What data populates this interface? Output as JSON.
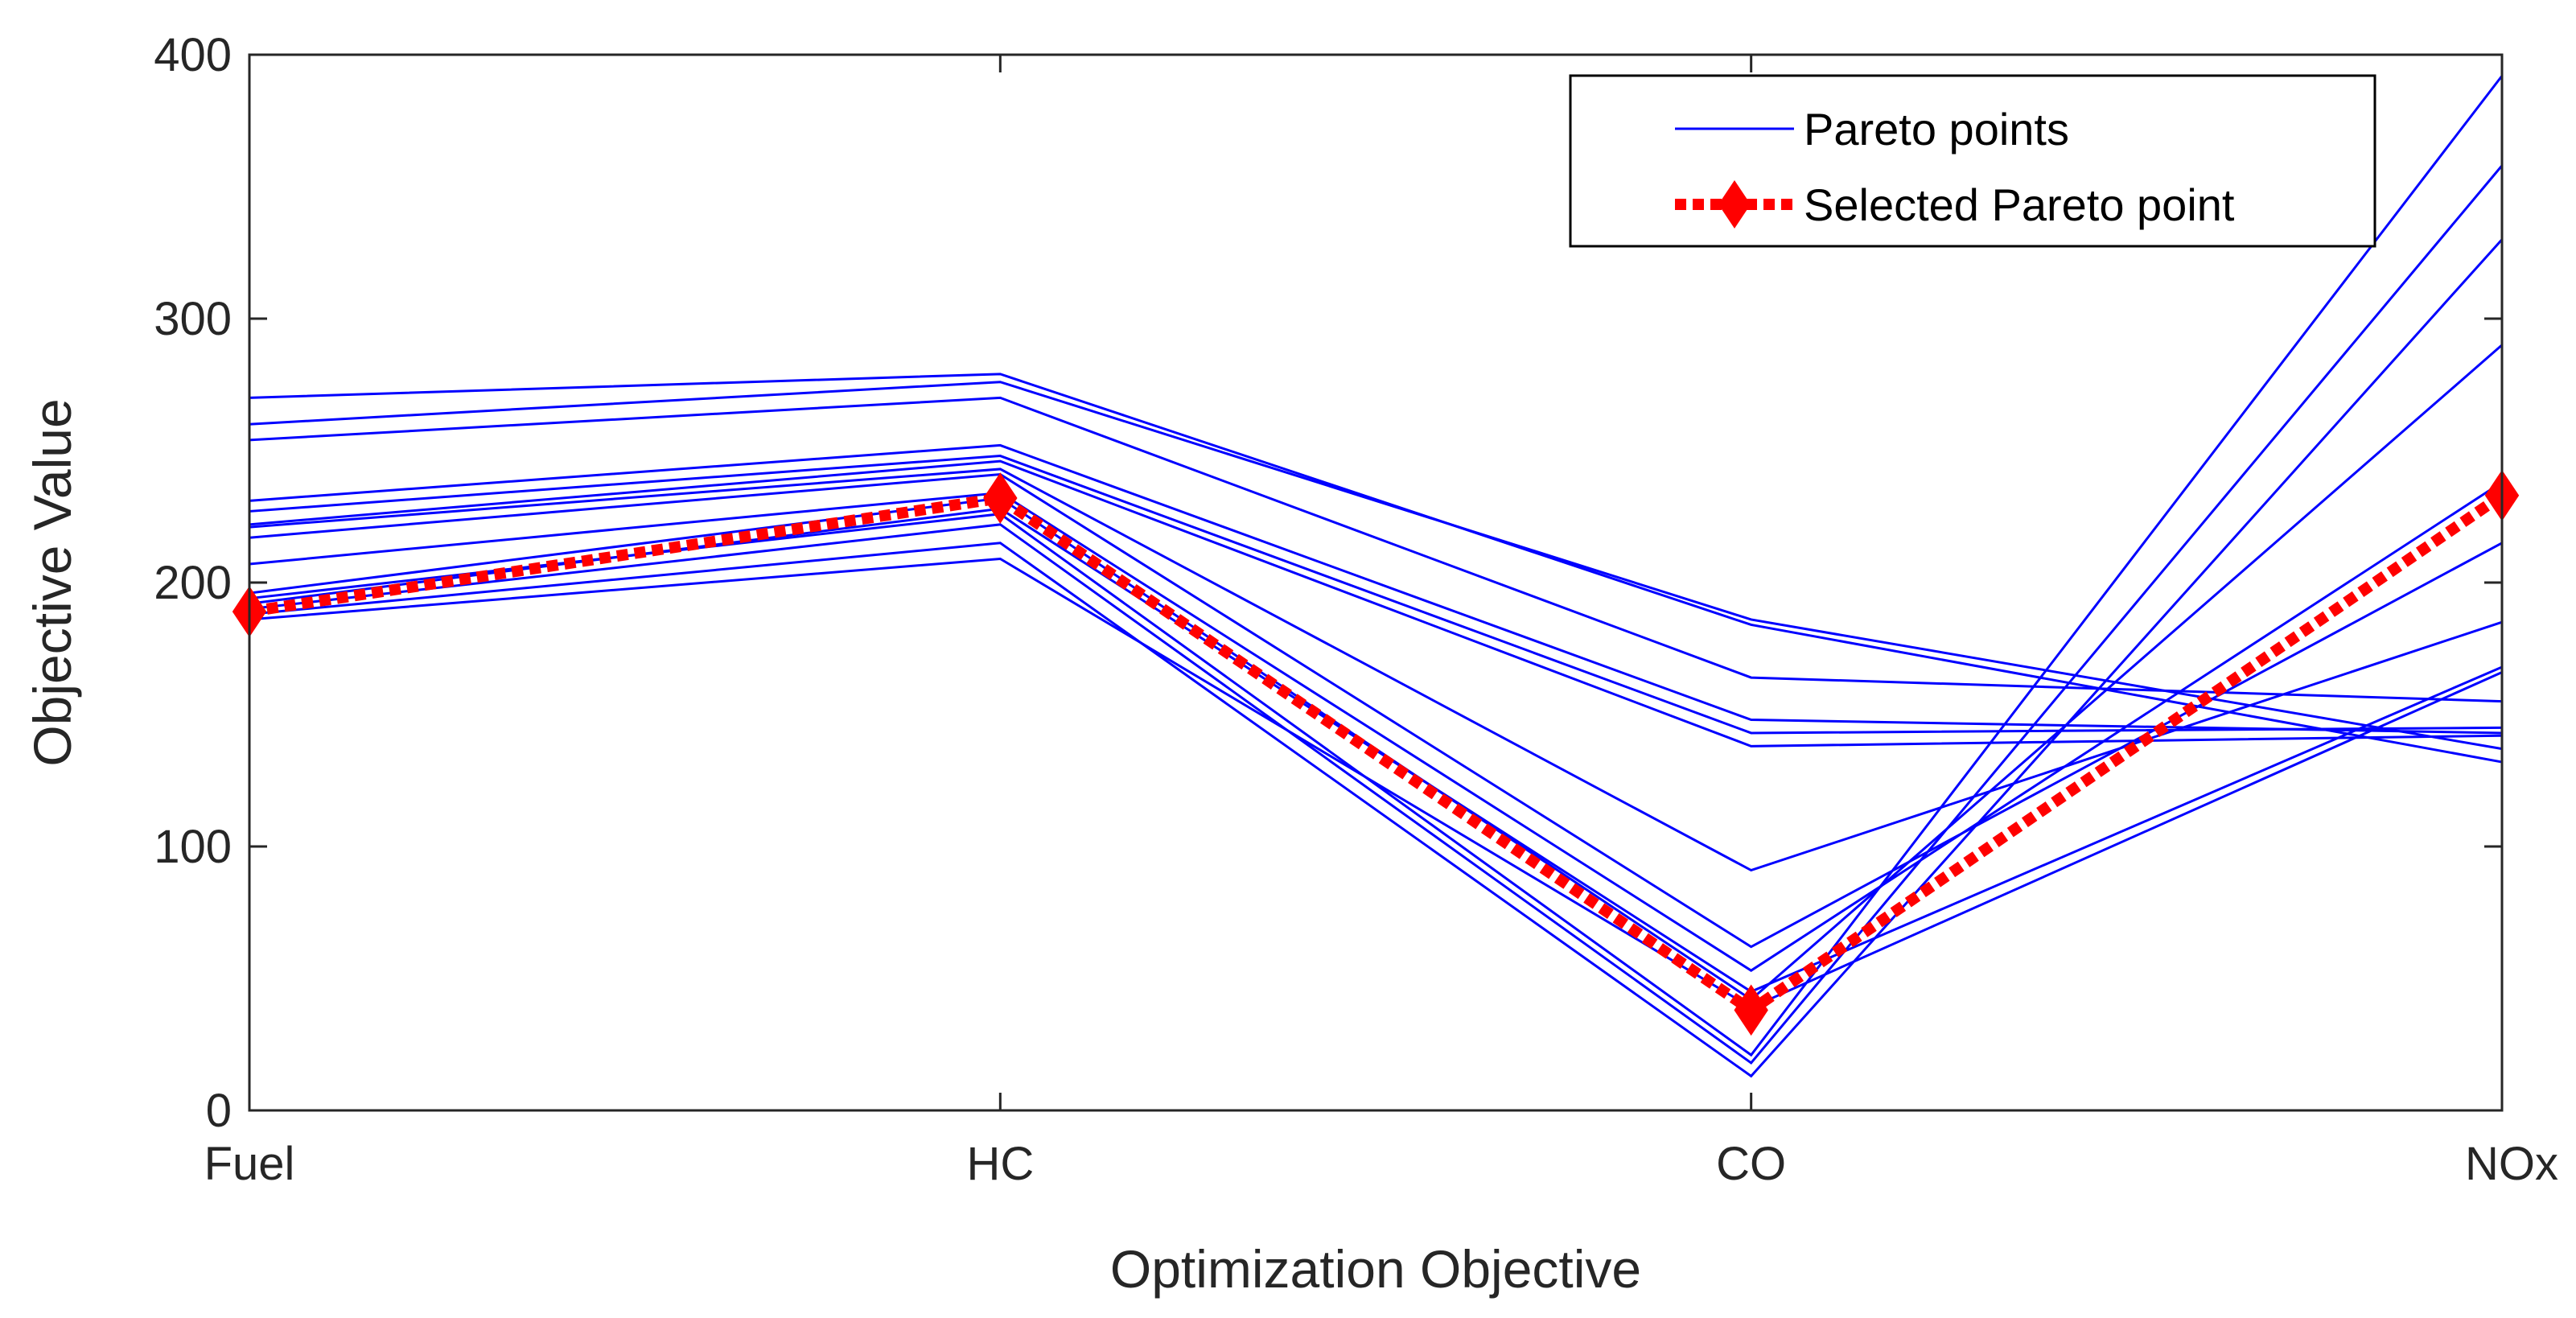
{
  "chart_data": {
    "type": "line",
    "xlabel": "Optimization Objective",
    "ylabel": "Objective Value",
    "categories": [
      "Fuel",
      "HC",
      "CO",
      "NOx"
    ],
    "ylim": [
      0,
      400
    ],
    "yticks": [
      0,
      100,
      200,
      300,
      400
    ],
    "grid": false,
    "legend_position": "top-right",
    "colors": {
      "pareto": "#0000FF",
      "selected": "#FF0000",
      "axis": "#262626"
    },
    "legend": [
      {
        "label": "Pareto points",
        "series": "pareto"
      },
      {
        "label": "Selected Pareto point",
        "series": "selected"
      }
    ],
    "pareto_series": [
      [
        270,
        279,
        184,
        132
      ],
      [
        260,
        276,
        186,
        137
      ],
      [
        254,
        270,
        164,
        155
      ],
      [
        231,
        252,
        148,
        143
      ],
      [
        227,
        248,
        143,
        145
      ],
      [
        222,
        246,
        138,
        142
      ],
      [
        221,
        243,
        91,
        185
      ],
      [
        217,
        241,
        62,
        215
      ],
      [
        207,
        234,
        53,
        238
      ],
      [
        196,
        232,
        42,
        290
      ],
      [
        194,
        226,
        21,
        392
      ],
      [
        190,
        222,
        18,
        358
      ],
      [
        188,
        215,
        13,
        330
      ],
      [
        186,
        209,
        39,
        166
      ],
      [
        192,
        228,
        45,
        168
      ]
    ],
    "selected_series": {
      "values": [
        189,
        232,
        38,
        233
      ]
    }
  }
}
